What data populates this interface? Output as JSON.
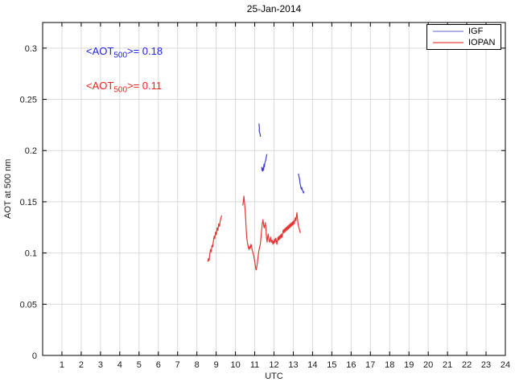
{
  "chart_data": {
    "type": "line",
    "title": "25-Jan-2014",
    "xlabel": "UTC",
    "ylabel": "AOT at 500 nm",
    "xlim": [
      0,
      24
    ],
    "ylim": [
      0,
      0.325
    ],
    "xticks": [
      1,
      2,
      3,
      4,
      5,
      6,
      7,
      8,
      9,
      10,
      11,
      12,
      13,
      14,
      15,
      16,
      17,
      18,
      19,
      20,
      21,
      22,
      23,
      24
    ],
    "yticks": [
      0,
      0.05,
      0.1,
      0.15,
      0.2,
      0.25,
      0.3
    ],
    "ytick_labels": [
      "0",
      "0.05",
      "0.1",
      "0.15",
      "0.2",
      "0.25",
      "0.3"
    ],
    "grid": true,
    "grid_color": "#d9d9d9",
    "axis_color": "#000000",
    "tick_label_color": "#1a1a1a",
    "legend": {
      "position": "top-right",
      "items": [
        {
          "label": "IGF",
          "sample_color": "#b0b0e8"
        },
        {
          "label": "IOPAN",
          "sample_color": "#f08888"
        }
      ]
    },
    "annotations": [
      {
        "prefix": "<AOT",
        "sub": "500",
        "suffix": ">= 0.18",
        "value": 0.18,
        "color": "#2222e6"
      },
      {
        "prefix": "<AOT",
        "sub": "500",
        "suffix": ">= 0.11",
        "value": 0.11,
        "color": "#ee2222"
      }
    ],
    "series": [
      {
        "name": "IGF",
        "color": "#3a3ae0",
        "segments": [
          [
            [
              11.22,
              0.2265
            ],
            [
              11.24,
              0.222
            ],
            [
              11.23,
              0.219
            ],
            [
              11.26,
              0.2175
            ],
            [
              11.28,
              0.2155
            ],
            [
              11.3,
              0.2135
            ]
          ],
          [
            [
              11.36,
              0.184
            ],
            [
              11.38,
              0.1805
            ],
            [
              11.4,
              0.1825
            ],
            [
              11.42,
              0.18
            ],
            [
              11.44,
              0.1835
            ],
            [
              11.46,
              0.181
            ],
            [
              11.48,
              0.1865
            ],
            [
              11.5,
              0.184
            ],
            [
              11.52,
              0.1875
            ],
            [
              11.56,
              0.19
            ],
            [
              11.6,
              0.1935
            ],
            [
              11.63,
              0.1965
            ]
          ],
          [
            [
              13.27,
              0.1775
            ],
            [
              13.3,
              0.1745
            ],
            [
              13.33,
              0.1715
            ],
            [
              13.35,
              0.168
            ],
            [
              13.38,
              0.1655
            ],
            [
              13.41,
              0.1625
            ],
            [
              13.44,
              0.164
            ],
            [
              13.47,
              0.1615
            ],
            [
              13.5,
              0.1605
            ],
            [
              13.53,
              0.1585
            ],
            [
              13.56,
              0.16
            ]
          ]
        ]
      },
      {
        "name": "IOPAN",
        "color": "#e83333",
        "segments": [
          [
            [
              8.56,
              0.0915
            ],
            [
              8.6,
              0.0945
            ],
            [
              8.63,
              0.0925
            ],
            [
              8.67,
              0.099
            ],
            [
              8.71,
              0.1035
            ],
            [
              8.74,
              0.101
            ],
            [
              8.78,
              0.1075
            ],
            [
              8.82,
              0.106
            ],
            [
              8.86,
              0.1125
            ],
            [
              8.9,
              0.1165
            ],
            [
              8.93,
              0.114
            ],
            [
              8.97,
              0.1205
            ],
            [
              9.01,
              0.118
            ],
            [
              9.05,
              0.1245
            ],
            [
              9.09,
              0.122
            ],
            [
              9.13,
              0.1285
            ],
            [
              9.17,
              0.126
            ],
            [
              9.21,
              0.1315
            ],
            [
              9.25,
              0.1345
            ],
            [
              9.29,
              0.1365
            ]
          ],
          [
            [
              10.38,
              0.1465
            ],
            [
              10.41,
              0.1505
            ],
            [
              10.44,
              0.1555
            ],
            [
              10.47,
              0.1495
            ],
            [
              10.5,
              0.1425
            ],
            [
              10.53,
              0.1335
            ],
            [
              10.56,
              0.1225
            ],
            [
              10.59,
              0.1145
            ],
            [
              10.62,
              0.1105
            ],
            [
              10.65,
              0.1075
            ],
            [
              10.68,
              0.1045
            ],
            [
              10.71,
              0.1035
            ],
            [
              10.74,
              0.1065
            ],
            [
              10.77,
              0.1045
            ],
            [
              10.8,
              0.1085
            ],
            [
              10.83,
              0.1075
            ],
            [
              10.86,
              0.1035
            ],
            [
              10.89,
              0.1015
            ],
            [
              10.92,
              0.0995
            ],
            [
              10.95,
              0.0975
            ],
            [
              10.98,
              0.0935
            ],
            [
              11.01,
              0.0905
            ],
            [
              11.04,
              0.0865
            ],
            [
              11.07,
              0.0835
            ],
            [
              11.1,
              0.0855
            ],
            [
              11.13,
              0.0895
            ],
            [
              11.16,
              0.0945
            ],
            [
              11.19,
              0.0985
            ],
            [
              11.22,
              0.1025
            ],
            [
              11.25,
              0.1055
            ],
            [
              11.28,
              0.1075
            ],
            [
              11.31,
              0.1125
            ],
            [
              11.34,
              0.1185
            ],
            [
              11.37,
              0.1245
            ],
            [
              11.4,
              0.1295
            ],
            [
              11.43,
              0.1325
            ],
            [
              11.46,
              0.1275
            ],
            [
              11.49,
              0.1245
            ],
            [
              11.52,
              0.1265
            ],
            [
              11.55,
              0.1295
            ],
            [
              11.58,
              0.1245
            ],
            [
              11.61,
              0.1145
            ],
            [
              11.64,
              0.1105
            ],
            [
              11.67,
              0.1155
            ],
            [
              11.7,
              0.1185
            ],
            [
              11.73,
              0.1145
            ],
            [
              11.76,
              0.1115
            ],
            [
              11.79,
              0.1105
            ],
            [
              11.82,
              0.1155
            ],
            [
              11.85,
              0.1125
            ],
            [
              11.88,
              0.1105
            ],
            [
              11.91,
              0.1125
            ],
            [
              11.94,
              0.1085
            ],
            [
              11.97,
              0.1115
            ],
            [
              12.0,
              0.1095
            ],
            [
              12.03,
              0.1135
            ],
            [
              12.06,
              0.1105
            ],
            [
              12.09,
              0.1145
            ],
            [
              12.12,
              0.1115
            ],
            [
              12.15,
              0.1085
            ],
            [
              12.18,
              0.1125
            ],
            [
              12.21,
              0.1155
            ],
            [
              12.24,
              0.1125
            ],
            [
              12.27,
              0.1165
            ],
            [
              12.3,
              0.1135
            ],
            [
              12.33,
              0.1175
            ],
            [
              12.36,
              0.1145
            ],
            [
              12.39,
              0.1185
            ],
            [
              12.42,
              0.1155
            ],
            [
              12.45,
              0.1195
            ],
            [
              12.48,
              0.1225
            ],
            [
              12.51,
              0.1195
            ],
            [
              12.54,
              0.1235
            ],
            [
              12.57,
              0.1205
            ],
            [
              12.6,
              0.1245
            ],
            [
              12.63,
              0.1215
            ],
            [
              12.66,
              0.1255
            ],
            [
              12.69,
              0.1225
            ],
            [
              12.72,
              0.1265
            ],
            [
              12.75,
              0.1235
            ],
            [
              12.78,
              0.1275
            ],
            [
              12.81,
              0.1245
            ],
            [
              12.84,
              0.1285
            ],
            [
              12.87,
              0.1255
            ],
            [
              12.9,
              0.1295
            ],
            [
              12.93,
              0.1265
            ],
            [
              12.96,
              0.1305
            ],
            [
              12.99,
              0.1275
            ],
            [
              13.02,
              0.1315
            ],
            [
              13.05,
              0.1285
            ],
            [
              13.08,
              0.1325
            ],
            [
              13.11,
              0.1345
            ],
            [
              13.14,
              0.1315
            ],
            [
              13.17,
              0.1365
            ],
            [
              13.19,
              0.1395
            ],
            [
              13.22,
              0.1335
            ],
            [
              13.25,
              0.1285
            ],
            [
              13.28,
              0.1255
            ],
            [
              13.31,
              0.1235
            ],
            [
              13.34,
              0.1215
            ],
            [
              13.37,
              0.1195
            ]
          ]
        ]
      }
    ]
  }
}
